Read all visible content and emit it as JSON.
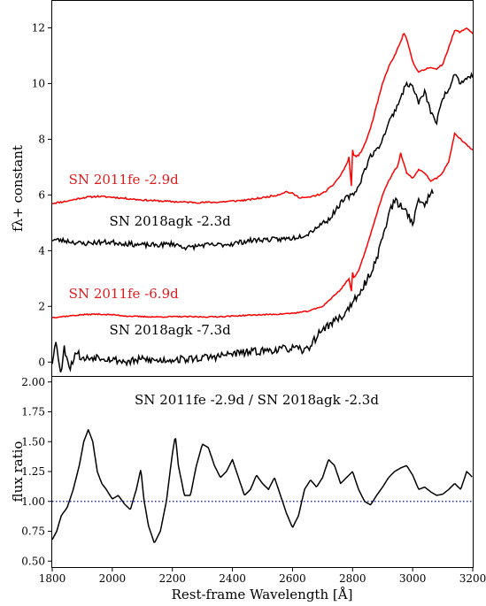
{
  "chart_data": [
    {
      "type": "line",
      "xlabel": "Rest-frame Wavelength [Å]",
      "ylabel": "fλ+ constant",
      "xlim": [
        1800,
        3200
      ],
      "ylim": [
        -0.5,
        13
      ],
      "xticks": [
        "1800",
        "2000",
        "2200",
        "2400",
        "2600",
        "2800",
        "3000",
        "3200"
      ],
      "yticks": [
        "0",
        "2",
        "4",
        "6",
        "8",
        "10",
        "12"
      ],
      "annotations": [
        {
          "text": "SN 2011fe  -2.9d",
          "color": "#e31a1c",
          "x": 1855,
          "y": 6.4
        },
        {
          "text": "SN 2018agk -2.3d",
          "color": "#000000",
          "x": 1990,
          "y": 4.9
        },
        {
          "text": "SN 2011fe  -6.9d",
          "color": "#e31a1c",
          "x": 1855,
          "y": 2.3
        },
        {
          "text": "SN 2018agk  -7.3d",
          "color": "#000000",
          "x": 1990,
          "y": 1.0
        }
      ],
      "series": [
        {
          "name": "SN 2011fe  -2.9d",
          "color": "#ff0000",
          "noise": 0.03,
          "seed": 11,
          "x": [
            1800,
            1850,
            1900,
            1950,
            2000,
            2050,
            2100,
            2150,
            2200,
            2250,
            2300,
            2350,
            2400,
            2450,
            2500,
            2550,
            2580,
            2600,
            2620,
            2650,
            2700,
            2730,
            2760,
            2780,
            2790,
            2795,
            2800,
            2805,
            2820,
            2840,
            2860,
            2880,
            2900,
            2920,
            2940,
            2960,
            2970,
            2980,
            3000,
            3020,
            3040,
            3060,
            3080,
            3100,
            3120,
            3140,
            3160,
            3180,
            3200
          ],
          "y": [
            5.7,
            5.78,
            5.9,
            5.95,
            5.92,
            5.87,
            5.82,
            5.79,
            5.76,
            5.74,
            5.73,
            5.74,
            5.78,
            5.82,
            5.9,
            6.0,
            6.12,
            6.05,
            5.92,
            5.9,
            6.05,
            6.3,
            6.7,
            7.1,
            7.4,
            6.0,
            7.6,
            7.4,
            7.4,
            7.8,
            8.4,
            9.2,
            10.0,
            10.6,
            11.0,
            11.5,
            11.8,
            11.6,
            10.8,
            10.4,
            10.5,
            10.6,
            10.5,
            10.7,
            11.3,
            11.9,
            11.85,
            12.0,
            11.8
          ]
        },
        {
          "name": "SN 2018agk -2.3d",
          "color": "#000000",
          "noise": 0.09,
          "seed": 23,
          "x": [
            1800,
            1850,
            1900,
            1950,
            2000,
            2050,
            2100,
            2150,
            2200,
            2250,
            2300,
            2350,
            2400,
            2450,
            2500,
            2550,
            2600,
            2650,
            2700,
            2720,
            2740,
            2760,
            2780,
            2800,
            2820,
            2840,
            2860,
            2880,
            2900,
            2920,
            2940,
            2960,
            2980,
            3000,
            3020,
            3040,
            3060,
            3080,
            3100,
            3120,
            3140,
            3160,
            3180,
            3200
          ],
          "y": [
            4.4,
            4.35,
            4.25,
            4.3,
            4.3,
            4.25,
            4.2,
            4.2,
            4.25,
            4.1,
            4.2,
            4.2,
            4.25,
            4.35,
            4.4,
            4.4,
            4.45,
            4.6,
            5.0,
            5.1,
            5.4,
            5.7,
            5.9,
            6.0,
            6.3,
            6.9,
            7.4,
            7.6,
            8.0,
            8.6,
            9.0,
            9.5,
            10.0,
            9.9,
            9.3,
            9.7,
            9.0,
            8.6,
            9.5,
            9.8,
            10.4,
            10.0,
            10.2,
            10.3
          ]
        },
        {
          "name": "SN 2011fe  -6.9d",
          "color": "#ff0000",
          "noise": 0.02,
          "seed": 37,
          "x": [
            1800,
            1850,
            1900,
            1950,
            2000,
            2050,
            2100,
            2150,
            2200,
            2250,
            2300,
            2350,
            2400,
            2450,
            2500,
            2550,
            2600,
            2650,
            2700,
            2730,
            2760,
            2780,
            2790,
            2795,
            2800,
            2805,
            2820,
            2840,
            2860,
            2880,
            2900,
            2920,
            2940,
            2950,
            2960,
            2980,
            3000,
            3020,
            3040,
            3060,
            3080,
            3100,
            3120,
            3140,
            3160,
            3180,
            3200
          ],
          "y": [
            1.6,
            1.65,
            1.7,
            1.72,
            1.7,
            1.65,
            1.63,
            1.62,
            1.63,
            1.63,
            1.62,
            1.63,
            1.65,
            1.68,
            1.7,
            1.72,
            1.75,
            1.82,
            2.0,
            2.3,
            2.6,
            2.9,
            3.0,
            2.4,
            3.2,
            3.0,
            3.3,
            3.9,
            4.6,
            5.3,
            6.0,
            6.5,
            6.9,
            7.0,
            7.5,
            6.8,
            6.6,
            6.9,
            6.8,
            6.5,
            6.6,
            6.8,
            7.2,
            8.2,
            8.0,
            7.8,
            7.6
          ]
        },
        {
          "name": "SN 2018agk  -7.3d",
          "color": "#000000",
          "noise": 0.14,
          "seed": 53,
          "x": [
            1800,
            1810,
            1820,
            1830,
            1840,
            1860,
            1880,
            1900,
            1950,
            2000,
            2050,
            2100,
            2150,
            2200,
            2250,
            2300,
            2350,
            2400,
            2450,
            2500,
            2550,
            2600,
            2640,
            2660,
            2680,
            2700,
            2720,
            2740,
            2760,
            2780,
            2800,
            2820,
            2840,
            2860,
            2880,
            2900,
            2920,
            2940,
            2960,
            2980,
            3000,
            3020,
            3040,
            3060,
            3070
          ],
          "y": [
            0.0,
            0.8,
            0.2,
            -0.4,
            0.5,
            -0.2,
            0.4,
            0.1,
            0.2,
            0.1,
            0.0,
            0.1,
            0.05,
            0.1,
            0.1,
            0.15,
            0.2,
            0.3,
            0.35,
            0.4,
            0.45,
            0.5,
            0.4,
            0.6,
            0.9,
            1.2,
            1.3,
            1.5,
            1.6,
            1.8,
            2.2,
            2.3,
            2.8,
            3.2,
            3.7,
            4.5,
            5.3,
            5.8,
            5.6,
            5.4,
            5.0,
            5.8,
            5.7,
            6.0,
            6.2
          ]
        }
      ]
    },
    {
      "type": "line",
      "xlabel": "Rest-frame Wavelength [Å]",
      "ylabel": "flux ratio",
      "xlim": [
        1800,
        3200
      ],
      "ylim": [
        0.45,
        2.05
      ],
      "xticks": [
        "1800",
        "2000",
        "2200",
        "2400",
        "2600",
        "2800",
        "3000",
        "3200"
      ],
      "yticks": [
        "0.50",
        "0.75",
        "1.00",
        "1.25",
        "1.50",
        "1.75",
        "2.00"
      ],
      "title": "SN 2011fe -2.9d / SN 2018agk -2.3d",
      "reference_line": {
        "y": 1.0,
        "color": "#0000cc",
        "style": "dotted"
      },
      "series": [
        {
          "name": "SN 2011fe -2.9d / SN 2018agk -2.3d",
          "color": "#000000",
          "x": [
            1800,
            1815,
            1830,
            1850,
            1870,
            1890,
            1905,
            1920,
            1935,
            1950,
            1965,
            1980,
            2000,
            2020,
            2040,
            2060,
            2080,
            2095,
            2105,
            2120,
            2140,
            2160,
            2180,
            2200,
            2210,
            2220,
            2240,
            2260,
            2280,
            2300,
            2320,
            2340,
            2360,
            2380,
            2400,
            2420,
            2440,
            2460,
            2480,
            2500,
            2520,
            2540,
            2560,
            2580,
            2600,
            2620,
            2640,
            2660,
            2680,
            2700,
            2720,
            2740,
            2760,
            2780,
            2800,
            2820,
            2840,
            2860,
            2880,
            2900,
            2920,
            2940,
            2960,
            2980,
            3000,
            3020,
            3040,
            3060,
            3080,
            3100,
            3120,
            3140,
            3160,
            3180,
            3200
          ],
          "y": [
            0.68,
            0.75,
            0.88,
            0.95,
            1.1,
            1.3,
            1.5,
            1.6,
            1.5,
            1.25,
            1.15,
            1.1,
            1.02,
            1.05,
            0.98,
            0.93,
            1.1,
            1.27,
            1.02,
            0.8,
            0.65,
            0.75,
            1.0,
            1.4,
            1.55,
            1.3,
            1.05,
            1.05,
            1.3,
            1.48,
            1.45,
            1.3,
            1.2,
            1.25,
            1.35,
            1.2,
            1.05,
            1.1,
            1.22,
            1.15,
            1.1,
            1.2,
            1.05,
            0.9,
            0.78,
            0.88,
            1.1,
            1.18,
            1.12,
            1.2,
            1.35,
            1.3,
            1.15,
            1.2,
            1.25,
            1.1,
            1.0,
            0.97,
            1.05,
            1.12,
            1.2,
            1.25,
            1.28,
            1.3,
            1.22,
            1.1,
            1.12,
            1.08,
            1.05,
            1.06,
            1.1,
            1.15,
            1.1,
            1.25,
            1.2
          ]
        }
      ]
    }
  ]
}
